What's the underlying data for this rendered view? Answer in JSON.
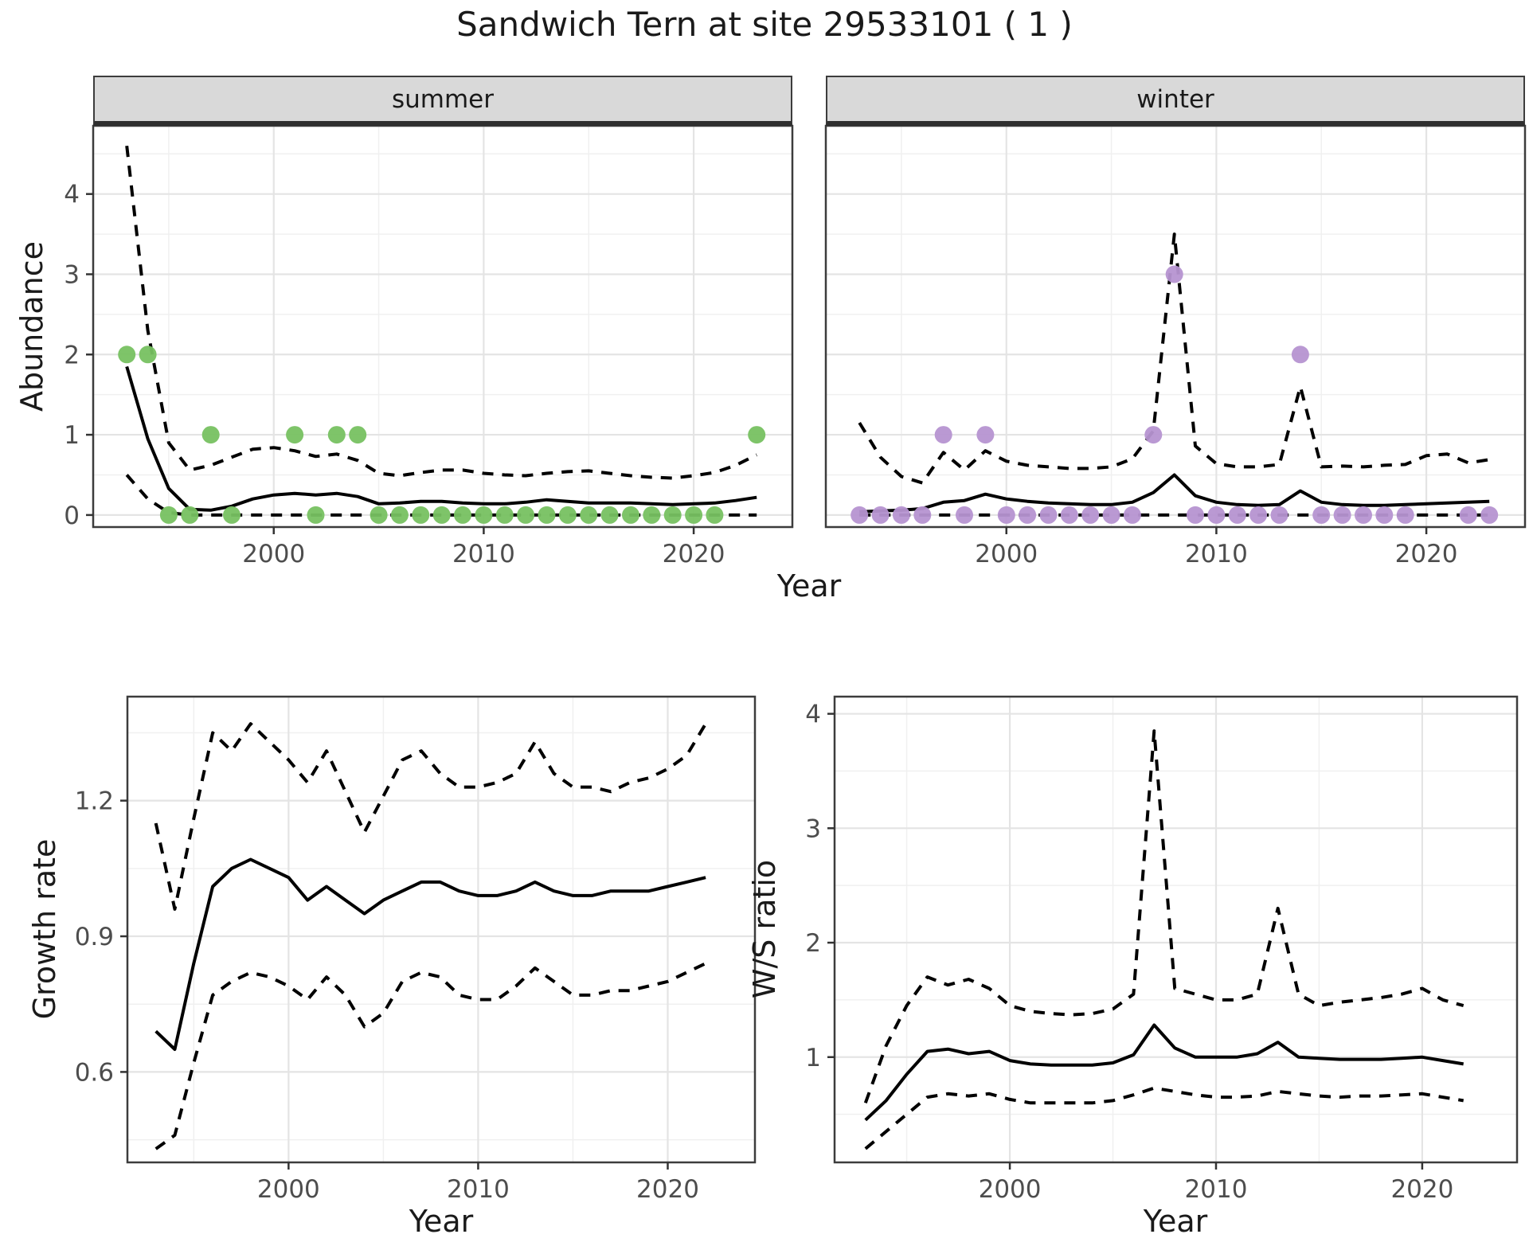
{
  "title": "Sandwich Tern at site 29533101 ( 1 )",
  "colors": {
    "summer_point": "#77c161",
    "winter_point": "#b694d1",
    "line": "#000000",
    "strip_bg": "#d9d9d9",
    "grid_major": "#e4e4e4",
    "grid_minor": "#f0f0f0",
    "panel_border": "#3c3c3c",
    "tick_label": "#4d4d4d"
  },
  "chart_data": [
    {
      "type": "line+scatter",
      "facet": "summer",
      "title": "summer",
      "xlabel": "Year",
      "ylabel": "Abundance",
      "xticks": [
        2000,
        2010,
        2020
      ],
      "x_minor": [
        1995,
        2005,
        2015
      ],
      "yticks": [
        0,
        1,
        2,
        3,
        4
      ],
      "y_minor": [
        0.5,
        1.5,
        2.5,
        3.5,
        4.5
      ],
      "xlim": [
        1991.4,
        2024.7
      ],
      "ylim": [
        -0.15,
        4.85
      ],
      "grid": true,
      "legend": "none",
      "x": [
        1993,
        1994,
        1995,
        1996,
        1997,
        1998,
        1999,
        2000,
        2001,
        2002,
        2003,
        2004,
        2005,
        2006,
        2007,
        2008,
        2009,
        2010,
        2011,
        2012,
        2013,
        2014,
        2015,
        2016,
        2017,
        2018,
        2019,
        2020,
        2021,
        2022,
        2023
      ],
      "series": [
        {
          "name": "mean",
          "style": "solid",
          "values": [
            1.85,
            0.95,
            0.33,
            0.07,
            0.06,
            0.11,
            0.2,
            0.25,
            0.27,
            0.25,
            0.27,
            0.23,
            0.14,
            0.15,
            0.17,
            0.17,
            0.15,
            0.14,
            0.14,
            0.16,
            0.19,
            0.17,
            0.15,
            0.15,
            0.15,
            0.14,
            0.13,
            0.14,
            0.15,
            0.18,
            0.22
          ]
        },
        {
          "name": "upper_ci",
          "style": "dashed",
          "values": [
            4.6,
            2.3,
            0.9,
            0.56,
            0.62,
            0.72,
            0.82,
            0.84,
            0.8,
            0.73,
            0.76,
            0.68,
            0.52,
            0.49,
            0.53,
            0.56,
            0.56,
            0.52,
            0.5,
            0.49,
            0.52,
            0.54,
            0.55,
            0.52,
            0.49,
            0.47,
            0.46,
            0.49,
            0.53,
            0.62,
            0.75
          ]
        },
        {
          "name": "lower_ci",
          "style": "dashed",
          "values": [
            0.5,
            0.2,
            0.03,
            0,
            0,
            0,
            0,
            0,
            0,
            0,
            0,
            0,
            0,
            0,
            0,
            0,
            0,
            0,
            0,
            0,
            0,
            0,
            0,
            0,
            0,
            0,
            0,
            0,
            0,
            0,
            0
          ]
        }
      ],
      "points": {
        "color_key": "summer_point",
        "data": [
          [
            1993,
            2
          ],
          [
            1994,
            2
          ],
          [
            1995,
            0
          ],
          [
            1996,
            0
          ],
          [
            1997,
            1
          ],
          [
            1998,
            0
          ],
          [
            2001,
            1
          ],
          [
            2002,
            0
          ],
          [
            2003,
            1
          ],
          [
            2004,
            1
          ],
          [
            2005,
            0
          ],
          [
            2006,
            0
          ],
          [
            2007,
            0
          ],
          [
            2008,
            0
          ],
          [
            2009,
            0
          ],
          [
            2010,
            0
          ],
          [
            2011,
            0
          ],
          [
            2012,
            0
          ],
          [
            2013,
            0
          ],
          [
            2014,
            0
          ],
          [
            2015,
            0
          ],
          [
            2016,
            0
          ],
          [
            2017,
            0
          ],
          [
            2018,
            0
          ],
          [
            2019,
            0
          ],
          [
            2020,
            0
          ],
          [
            2021,
            0
          ],
          [
            2023,
            1
          ]
        ]
      }
    },
    {
      "type": "line+scatter",
      "facet": "winter",
      "title": "winter",
      "xlabel": "Year",
      "ylabel": "Abundance",
      "xticks": [
        2000,
        2010,
        2020
      ],
      "x_minor": [
        1995,
        2005,
        2015
      ],
      "yticks": [
        0,
        1,
        2,
        3,
        4
      ],
      "y_minor": [
        0.5,
        1.5,
        2.5,
        3.5,
        4.5
      ],
      "xlim": [
        1991.4,
        2024.7
      ],
      "ylim": [
        -0.15,
        4.85
      ],
      "grid": true,
      "legend": "none",
      "x": [
        1993,
        1994,
        1995,
        1996,
        1997,
        1998,
        1999,
        2000,
        2001,
        2002,
        2003,
        2004,
        2005,
        2006,
        2007,
        2008,
        2009,
        2010,
        2011,
        2012,
        2013,
        2014,
        2015,
        2016,
        2017,
        2018,
        2019,
        2020,
        2021,
        2022,
        2023
      ],
      "series": [
        {
          "name": "mean",
          "style": "solid",
          "values": [
            0.04,
            0.05,
            0.06,
            0.08,
            0.16,
            0.18,
            0.26,
            0.2,
            0.17,
            0.15,
            0.14,
            0.13,
            0.13,
            0.16,
            0.28,
            0.5,
            0.24,
            0.16,
            0.13,
            0.12,
            0.13,
            0.3,
            0.16,
            0.13,
            0.12,
            0.12,
            0.13,
            0.14,
            0.15,
            0.16,
            0.17
          ]
        },
        {
          "name": "upper_ci",
          "style": "dashed",
          "values": [
            1.15,
            0.72,
            0.48,
            0.4,
            0.78,
            0.56,
            0.8,
            0.67,
            0.62,
            0.6,
            0.58,
            0.58,
            0.6,
            0.7,
            1.05,
            3.5,
            0.86,
            0.64,
            0.6,
            0.6,
            0.63,
            1.6,
            0.6,
            0.61,
            0.6,
            0.62,
            0.63,
            0.74,
            0.76,
            0.65,
            0.69
          ]
        },
        {
          "name": "lower_ci",
          "style": "dashed",
          "values": [
            0,
            0,
            0,
            0,
            0,
            0,
            0,
            0,
            0,
            0,
            0,
            0,
            0,
            0,
            0,
            0,
            0,
            0,
            0,
            0,
            0,
            0,
            0,
            0,
            0,
            0,
            0,
            0,
            0,
            0,
            0
          ]
        }
      ],
      "points": {
        "color_key": "winter_point",
        "data": [
          [
            1993,
            0
          ],
          [
            1994,
            0
          ],
          [
            1995,
            0
          ],
          [
            1996,
            0
          ],
          [
            1997,
            1
          ],
          [
            1998,
            0
          ],
          [
            1999,
            1
          ],
          [
            2000,
            0
          ],
          [
            2001,
            0
          ],
          [
            2002,
            0
          ],
          [
            2003,
            0
          ],
          [
            2004,
            0
          ],
          [
            2005,
            0
          ],
          [
            2006,
            0
          ],
          [
            2007,
            1
          ],
          [
            2008,
            3
          ],
          [
            2009,
            0
          ],
          [
            2010,
            0
          ],
          [
            2011,
            0
          ],
          [
            2012,
            0
          ],
          [
            2013,
            0
          ],
          [
            2014,
            2
          ],
          [
            2015,
            0
          ],
          [
            2016,
            0
          ],
          [
            2017,
            0
          ],
          [
            2018,
            0
          ],
          [
            2019,
            0
          ],
          [
            2022,
            0
          ],
          [
            2023,
            0
          ]
        ]
      }
    },
    {
      "type": "line",
      "title": "Growth rate",
      "xlabel": "Year",
      "ylabel": "Growth rate",
      "xticks": [
        2000,
        2010,
        2020
      ],
      "x_minor": [
        1995,
        2005,
        2015
      ],
      "yticks": [
        0.6,
        0.9,
        1.2
      ],
      "y_minor": [
        0.45,
        0.75,
        1.05,
        1.35
      ],
      "xlim": [
        1991.5,
        2024.6
      ],
      "ylim": [
        0.4,
        1.43
      ],
      "grid": true,
      "legend": "none",
      "x": [
        1993,
        1994,
        1995,
        1996,
        1997,
        1998,
        1999,
        2000,
        2001,
        2002,
        2003,
        2004,
        2005,
        2006,
        2007,
        2008,
        2009,
        2010,
        2011,
        2012,
        2013,
        2014,
        2015,
        2016,
        2017,
        2018,
        2019,
        2020,
        2021,
        2022
      ],
      "series": [
        {
          "name": "mean",
          "style": "solid",
          "values": [
            0.69,
            0.65,
            0.84,
            1.01,
            1.05,
            1.07,
            1.05,
            1.03,
            0.98,
            1.01,
            0.98,
            0.95,
            0.98,
            1.0,
            1.02,
            1.02,
            1.0,
            0.99,
            0.99,
            1.0,
            1.02,
            1.0,
            0.99,
            0.99,
            1.0,
            1.0,
            1.0,
            1.01,
            1.02,
            1.03
          ]
        },
        {
          "name": "upper_ci",
          "style": "dashed",
          "values": [
            1.15,
            0.96,
            1.16,
            1.35,
            1.31,
            1.37,
            1.33,
            1.29,
            1.24,
            1.31,
            1.22,
            1.13,
            1.21,
            1.29,
            1.31,
            1.26,
            1.23,
            1.23,
            1.24,
            1.26,
            1.33,
            1.26,
            1.23,
            1.23,
            1.22,
            1.24,
            1.25,
            1.27,
            1.3,
            1.37
          ]
        },
        {
          "name": "lower_ci",
          "style": "dashed",
          "values": [
            0.43,
            0.46,
            0.62,
            0.77,
            0.8,
            0.82,
            0.81,
            0.79,
            0.76,
            0.81,
            0.77,
            0.7,
            0.73,
            0.8,
            0.82,
            0.81,
            0.77,
            0.76,
            0.76,
            0.79,
            0.83,
            0.8,
            0.77,
            0.77,
            0.78,
            0.78,
            0.79,
            0.8,
            0.82,
            0.84
          ]
        }
      ],
      "points": null
    },
    {
      "type": "line",
      "title": "W/S ratio",
      "xlabel": "Year",
      "ylabel": "W/S ratio",
      "xticks": [
        2000,
        2010,
        2020
      ],
      "x_minor": [
        1995,
        2005,
        2015
      ],
      "yticks": [
        1,
        2,
        3,
        4
      ],
      "y_minor": [
        0.5,
        1.5,
        2.5,
        3.5
      ],
      "xlim": [
        1991.5,
        2024.6
      ],
      "ylim": [
        0.08,
        4.15
      ],
      "grid": true,
      "legend": "none",
      "x": [
        1993,
        1994,
        1995,
        1996,
        1997,
        1998,
        1999,
        2000,
        2001,
        2002,
        2003,
        2004,
        2005,
        2006,
        2007,
        2008,
        2009,
        2010,
        2011,
        2012,
        2013,
        2014,
        2015,
        2016,
        2017,
        2018,
        2019,
        2020,
        2021,
        2022
      ],
      "series": [
        {
          "name": "mean",
          "style": "solid",
          "values": [
            0.45,
            0.62,
            0.85,
            1.05,
            1.07,
            1.03,
            1.05,
            0.97,
            0.94,
            0.93,
            0.93,
            0.93,
            0.95,
            1.02,
            1.28,
            1.08,
            1.0,
            1.0,
            1.0,
            1.03,
            1.13,
            1.0,
            0.99,
            0.98,
            0.98,
            0.98,
            0.99,
            1.0,
            0.97,
            0.94
          ]
        },
        {
          "name": "upper_ci",
          "style": "dashed",
          "values": [
            0.6,
            1.1,
            1.45,
            1.7,
            1.63,
            1.68,
            1.6,
            1.45,
            1.4,
            1.38,
            1.37,
            1.38,
            1.42,
            1.55,
            3.85,
            1.6,
            1.55,
            1.5,
            1.5,
            1.55,
            2.3,
            1.55,
            1.45,
            1.48,
            1.5,
            1.52,
            1.55,
            1.6,
            1.5,
            1.45
          ]
        },
        {
          "name": "lower_ci",
          "style": "dashed",
          "values": [
            0.2,
            0.35,
            0.5,
            0.65,
            0.68,
            0.66,
            0.68,
            0.63,
            0.6,
            0.6,
            0.6,
            0.6,
            0.62,
            0.67,
            0.73,
            0.7,
            0.67,
            0.65,
            0.65,
            0.66,
            0.7,
            0.68,
            0.66,
            0.65,
            0.66,
            0.66,
            0.67,
            0.68,
            0.65,
            0.62
          ]
        }
      ],
      "points": null
    }
  ]
}
